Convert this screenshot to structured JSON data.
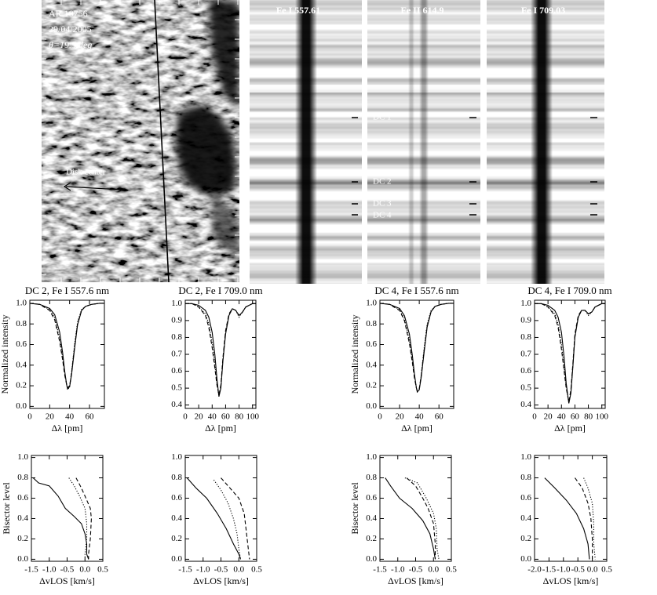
{
  "image_panel": {
    "labels": [
      "AR 10756",
      "29/04/2005",
      "θ=19.5 deg"
    ],
    "arrow_label": "Disk center"
  },
  "spectra": {
    "titles": [
      "Fe I 557.61",
      "Fe II 614.9",
      "Fe I 709.03"
    ],
    "dc_labels": [
      "DC 1",
      "DC 2",
      "DC 3",
      "DC 4"
    ]
  },
  "chart_data": [
    {
      "type": "line",
      "title": "DC 2, Fe I 557.6 nm",
      "xlabel": "Δλ [pm]",
      "ylabel": "Normalized intensity",
      "xlim": [
        0,
        75
      ],
      "ylim": [
        -0.02,
        1.03
      ],
      "xticks": [
        0,
        20,
        40,
        60
      ],
      "yticks": [
        {
          "value": 0,
          "label": "0.0"
        },
        0.2,
        0.4,
        0.6,
        0.8,
        {
          "value": 1,
          "label": "1.0"
        }
      ],
      "x": [
        0,
        10,
        20,
        25,
        30,
        33,
        35,
        37,
        38,
        40,
        42,
        45,
        48,
        52,
        56,
        62,
        70,
        75
      ],
      "series": [
        {
          "color": "#000",
          "dash": "solid",
          "values": [
            1.0,
            0.99,
            0.95,
            0.89,
            0.72,
            0.52,
            0.35,
            0.21,
            0.17,
            0.19,
            0.31,
            0.56,
            0.79,
            0.93,
            0.97,
            0.99,
            1.0,
            1.0
          ]
        },
        {
          "color": "#000",
          "dash": "dashed",
          "values": [
            1.0,
            0.99,
            0.93,
            0.84,
            0.63,
            0.45,
            0.31,
            0.21,
            0.18,
            0.2,
            0.33,
            0.58,
            0.8,
            0.93,
            0.97,
            0.99,
            1.0,
            1.0
          ]
        },
        {
          "color": "#000",
          "dash": "dotted",
          "values": [
            1.0,
            0.99,
            0.94,
            0.86,
            0.66,
            0.47,
            0.33,
            0.22,
            0.16,
            0.19,
            0.33,
            0.6,
            0.82,
            0.94,
            0.97,
            0.99,
            1.0,
            1.0
          ]
        }
      ]
    },
    {
      "type": "line",
      "title": "DC 2, Fe I 709.0 nm",
      "xlabel": "Δλ [pm]",
      "xlim": [
        0,
        105
      ],
      "ylim": [
        0.38,
        1.02
      ],
      "xticks": [
        0,
        20,
        40,
        60,
        80,
        100
      ],
      "yticks": [
        0.4,
        0.5,
        0.6,
        0.7,
        0.8,
        0.9,
        {
          "value": 1,
          "label": "1.0"
        }
      ],
      "x": [
        0,
        10,
        20,
        30,
        35,
        40,
        44,
        47,
        50,
        53,
        56,
        60,
        65,
        70,
        75,
        80,
        85,
        90,
        100,
        105
      ],
      "series": [
        {
          "color": "#000",
          "dash": "solid",
          "values": [
            1.0,
            1.0,
            0.99,
            0.96,
            0.92,
            0.83,
            0.7,
            0.56,
            0.45,
            0.5,
            0.66,
            0.82,
            0.93,
            0.97,
            0.96,
            0.93,
            0.95,
            0.98,
            1.0,
            1.0
          ]
        },
        {
          "color": "#000",
          "dash": "dashed",
          "values": [
            1.0,
            1.0,
            0.98,
            0.93,
            0.86,
            0.74,
            0.62,
            0.52,
            0.46,
            0.52,
            0.68,
            0.84,
            0.94,
            0.97,
            0.96,
            0.93,
            0.95,
            0.98,
            1.0,
            1.0
          ]
        },
        {
          "color": "#000",
          "dash": "dotted",
          "values": [
            1.0,
            1.0,
            0.98,
            0.94,
            0.88,
            0.77,
            0.64,
            0.53,
            0.45,
            0.51,
            0.67,
            0.83,
            0.93,
            0.97,
            0.96,
            0.92,
            0.95,
            0.98,
            1.0,
            1.0
          ]
        }
      ]
    },
    {
      "type": "line",
      "title": "DC 4, Fe I 557.6 nm",
      "xlabel": "Δλ [pm]",
      "ylabel": "Normalized intensity",
      "xlim": [
        0,
        75
      ],
      "ylim": [
        -0.02,
        1.03
      ],
      "xticks": [
        0,
        20,
        40,
        60
      ],
      "yticks": [
        {
          "value": 0,
          "label": "0.0"
        },
        0.2,
        0.4,
        0.6,
        0.8,
        {
          "value": 1,
          "label": "1.0"
        }
      ],
      "x": [
        0,
        10,
        20,
        25,
        30,
        33,
        35,
        37,
        38,
        40,
        42,
        45,
        48,
        52,
        56,
        62,
        70,
        75
      ],
      "series": [
        {
          "color": "#000",
          "dash": "solid",
          "values": [
            1.0,
            0.99,
            0.95,
            0.88,
            0.7,
            0.49,
            0.32,
            0.18,
            0.14,
            0.16,
            0.28,
            0.53,
            0.77,
            0.92,
            0.97,
            0.99,
            1.0,
            1.0
          ]
        },
        {
          "color": "#000",
          "dash": "dashed",
          "values": [
            1.0,
            0.99,
            0.93,
            0.83,
            0.61,
            0.42,
            0.28,
            0.18,
            0.15,
            0.17,
            0.3,
            0.55,
            0.78,
            0.92,
            0.97,
            0.99,
            1.0,
            1.0
          ]
        },
        {
          "color": "#000",
          "dash": "dotted",
          "values": [
            1.0,
            0.99,
            0.94,
            0.85,
            0.64,
            0.44,
            0.3,
            0.19,
            0.14,
            0.16,
            0.3,
            0.57,
            0.8,
            0.93,
            0.97,
            0.99,
            1.0,
            1.0
          ]
        }
      ]
    },
    {
      "type": "line",
      "title": "DC 4, Fe I 709.0 nm",
      "xlabel": "Δλ [pm]",
      "xlim": [
        0,
        105
      ],
      "ylim": [
        0.38,
        1.02
      ],
      "xticks": [
        0,
        20,
        40,
        60,
        80,
        100
      ],
      "yticks": [
        0.4,
        0.5,
        0.6,
        0.7,
        0.8,
        0.9,
        {
          "value": 1,
          "label": "1.0"
        }
      ],
      "x": [
        0,
        10,
        20,
        30,
        35,
        40,
        44,
        47,
        51,
        54,
        57,
        60,
        65,
        70,
        75,
        80,
        85,
        90,
        100,
        105
      ],
      "series": [
        {
          "color": "#000",
          "dash": "solid",
          "values": [
            1.0,
            1.0,
            0.99,
            0.96,
            0.92,
            0.83,
            0.68,
            0.53,
            0.41,
            0.47,
            0.63,
            0.8,
            0.92,
            0.96,
            0.96,
            0.94,
            0.95,
            0.98,
            1.0,
            1.0
          ]
        },
        {
          "color": "#000",
          "dash": "dashed",
          "values": [
            1.0,
            1.0,
            0.98,
            0.93,
            0.86,
            0.73,
            0.6,
            0.5,
            0.42,
            0.49,
            0.65,
            0.82,
            0.93,
            0.96,
            0.96,
            0.94,
            0.95,
            0.98,
            1.0,
            1.0
          ]
        },
        {
          "color": "#000",
          "dash": "dotted",
          "values": [
            1.0,
            1.0,
            0.98,
            0.94,
            0.88,
            0.76,
            0.62,
            0.51,
            0.41,
            0.48,
            0.64,
            0.81,
            0.92,
            0.96,
            0.96,
            0.93,
            0.95,
            0.98,
            1.0,
            1.0
          ]
        }
      ]
    },
    {
      "type": "line",
      "xlabel": "ΔvLOS [km/s]",
      "ylabel": "Bisector level",
      "xlim": [
        -1.5,
        0.5
      ],
      "ylim": [
        -0.02,
        1.02
      ],
      "xticks": [
        -1.5,
        {
          "value": -1,
          "label": "-1.0"
        },
        -0.5,
        {
          "value": 0,
          "label": "0.0"
        },
        0.5
      ],
      "yticks": [
        {
          "value": 0,
          "label": "0.0"
        },
        0.2,
        0.4,
        0.6,
        0.8,
        {
          "value": 1,
          "label": "1.0"
        }
      ],
      "series": [
        {
          "color": "#000",
          "dash": "solid",
          "x": [
            -1.45,
            -1.3,
            -1.0,
            -0.75,
            -0.55,
            -0.3,
            -0.1,
            0.0,
            0.05,
            0.05,
            0.1
          ],
          "values": [
            0.8,
            0.75,
            0.72,
            0.62,
            0.5,
            0.42,
            0.35,
            0.25,
            0.15,
            0.05,
            0.0
          ]
        },
        {
          "color": "#000",
          "dash": "dashed",
          "x": [
            -0.25,
            -0.1,
            0.0,
            0.15,
            0.18,
            0.15,
            0.1,
            0.1
          ],
          "values": [
            0.8,
            0.7,
            0.62,
            0.5,
            0.4,
            0.2,
            0.05,
            0.0
          ]
        },
        {
          "color": "#000",
          "dash": "dotted",
          "x": [
            -0.45,
            -0.3,
            -0.15,
            0.0,
            0.05,
            0.05,
            0.0,
            0.0
          ],
          "values": [
            0.8,
            0.72,
            0.62,
            0.5,
            0.35,
            0.2,
            0.05,
            0.0
          ]
        }
      ]
    },
    {
      "type": "line",
      "xlabel": "ΔvLOS [km/s]",
      "xlim": [
        -1.5,
        0.5
      ],
      "ylim": [
        -0.02,
        1.02
      ],
      "xticks": [
        -1.5,
        {
          "value": -1,
          "label": "-1.0"
        },
        -0.5,
        {
          "value": 0,
          "label": "0.0"
        },
        0.5
      ],
      "yticks": [
        {
          "value": 0,
          "label": "0.0"
        },
        0.2,
        0.4,
        0.6,
        0.8,
        {
          "value": 1,
          "label": "1.0"
        }
      ],
      "series": [
        {
          "color": "#000",
          "dash": "solid",
          "x": [
            -1.45,
            -1.2,
            -0.9,
            -0.6,
            -0.35,
            -0.15,
            0.0,
            0.05
          ],
          "values": [
            0.8,
            0.7,
            0.6,
            0.45,
            0.3,
            0.15,
            0.05,
            0.0
          ]
        },
        {
          "color": "#000",
          "dash": "dashed",
          "x": [
            -0.5,
            -0.25,
            0.0,
            0.15,
            0.2,
            0.25,
            0.3
          ],
          "values": [
            0.8,
            0.7,
            0.6,
            0.45,
            0.3,
            0.15,
            0.0
          ]
        },
        {
          "color": "#000",
          "dash": "dotted",
          "x": [
            -0.7,
            -0.5,
            -0.3,
            -0.15,
            -0.05,
            0.0,
            0.05
          ],
          "values": [
            0.78,
            0.68,
            0.55,
            0.4,
            0.25,
            0.1,
            0.0
          ]
        }
      ]
    },
    {
      "type": "line",
      "xlabel": "ΔvLOS [km/s]",
      "ylabel": "Bisector level",
      "xlim": [
        -1.5,
        0.5
      ],
      "ylim": [
        -0.02,
        1.02
      ],
      "xticks": [
        -1.5,
        {
          "value": -1,
          "label": "-1.0"
        },
        -0.5,
        {
          "value": 0,
          "label": "0.0"
        },
        0.5
      ],
      "yticks": [
        {
          "value": 0,
          "label": "0.0"
        },
        0.2,
        0.4,
        0.6,
        0.8,
        {
          "value": 1,
          "label": "1.0"
        }
      ],
      "series": [
        {
          "color": "#000",
          "dash": "solid",
          "x": [
            -1.35,
            -1.2,
            -0.95,
            -0.6,
            -0.3,
            -0.1,
            0.0,
            0.05
          ],
          "values": [
            0.8,
            0.72,
            0.6,
            0.5,
            0.38,
            0.25,
            0.1,
            0.0
          ]
        },
        {
          "color": "#000",
          "dash": "dashed",
          "x": [
            -0.75,
            -0.5,
            -0.3,
            -0.15,
            0.0,
            0.05,
            0.05
          ],
          "values": [
            0.8,
            0.72,
            0.6,
            0.5,
            0.35,
            0.15,
            0.0
          ]
        },
        {
          "color": "#000",
          "dash": "dotted",
          "x": [
            -0.8,
            -0.45,
            -0.2,
            0.0,
            0.08,
            0.1,
            0.15
          ],
          "values": [
            0.8,
            0.75,
            0.6,
            0.45,
            0.3,
            0.1,
            0.0
          ]
        }
      ]
    },
    {
      "type": "line",
      "xlabel": "ΔvLOS [km/s]",
      "xlim": [
        -2,
        0.5
      ],
      "ylim": [
        -0.02,
        1.02
      ],
      "xticks": [
        {
          "value": -2,
          "label": "-2.0"
        },
        -1.5,
        {
          "value": -1,
          "label": "-1.0"
        },
        -0.5,
        {
          "value": 0,
          "label": "0.0"
        },
        0.5
      ],
      "yticks": [
        {
          "value": 0,
          "label": "0.0"
        },
        0.2,
        0.4,
        0.6,
        0.8,
        {
          "value": 1,
          "label": "1.0"
        }
      ],
      "series": [
        {
          "color": "#000",
          "dash": "solid",
          "x": [
            -1.65,
            -1.3,
            -0.9,
            -0.55,
            -0.3,
            -0.15,
            -0.1
          ],
          "values": [
            0.8,
            0.7,
            0.58,
            0.45,
            0.3,
            0.15,
            0.0
          ]
        },
        {
          "color": "#000",
          "dash": "dashed",
          "x": [
            -0.6,
            -0.35,
            -0.15,
            -0.05,
            0.0,
            0.0
          ],
          "values": [
            0.8,
            0.7,
            0.55,
            0.4,
            0.2,
            0.0
          ]
        },
        {
          "color": "#000",
          "dash": "dotted",
          "x": [
            -0.3,
            -0.15,
            0.0,
            0.05,
            0.05,
            0.1
          ],
          "values": [
            0.8,
            0.7,
            0.55,
            0.35,
            0.15,
            0.0
          ]
        }
      ]
    }
  ]
}
